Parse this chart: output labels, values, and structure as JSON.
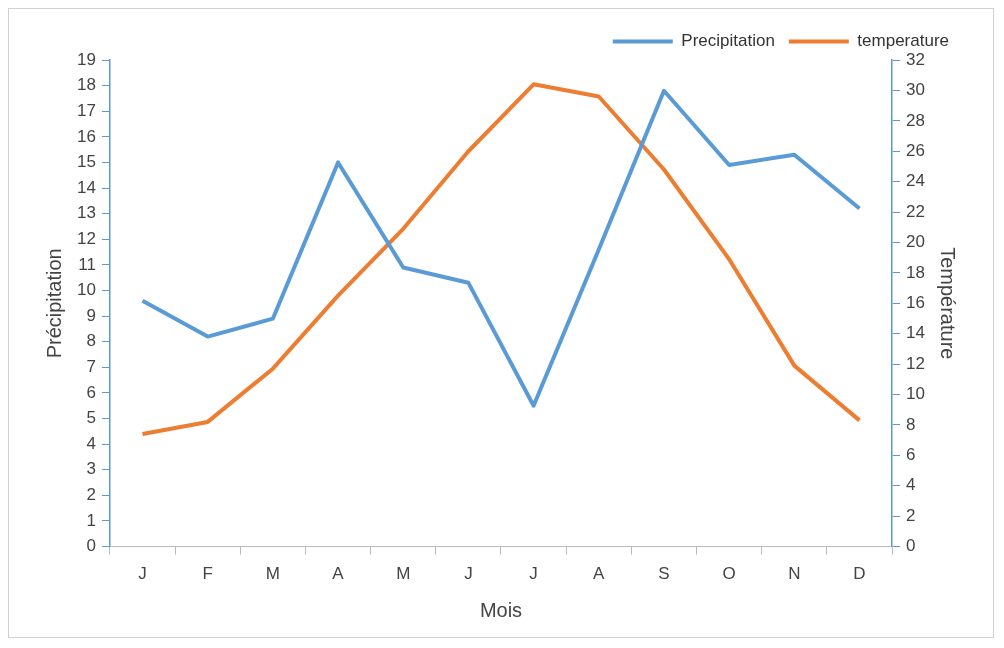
{
  "chart_data": {
    "type": "line",
    "xlabel": "Mois",
    "ylabel": "Précipitation",
    "y2label": "Température",
    "categories": [
      "J",
      "F",
      "M",
      "A",
      "M",
      "J",
      "J",
      "A",
      "S",
      "O",
      "N",
      "D"
    ],
    "series": [
      {
        "name": "Precipitation",
        "color": "#5b9bd5",
        "values": [
          9.6,
          8.2,
          8.9,
          15,
          10.9,
          10.3,
          5.5,
          11.6,
          17.8,
          14.9,
          15.3,
          13.2
        ]
      },
      {
        "name": "temperature",
        "color": "#ed7d31",
        "axis": "y2",
        "values": [
          7.4,
          8.2,
          11.7,
          16.5,
          20.9,
          26,
          30.4,
          29.6,
          24.8,
          18.9,
          11.9,
          8.3
        ]
      }
    ],
    "ylim": [
      0,
      19
    ],
    "yticks": [
      0,
      1,
      2,
      3,
      4,
      5,
      6,
      7,
      8,
      9,
      10,
      11,
      12,
      13,
      14,
      15,
      16,
      17,
      18,
      19
    ],
    "y2lim": [
      0,
      32
    ],
    "y2ticks": [
      0,
      2,
      4,
      6,
      8,
      10,
      12,
      14,
      16,
      18,
      20,
      22,
      24,
      26,
      28,
      30,
      32
    ],
    "grid": false,
    "legend": "top right",
    "marker": "none",
    "line_style": "solid"
  }
}
